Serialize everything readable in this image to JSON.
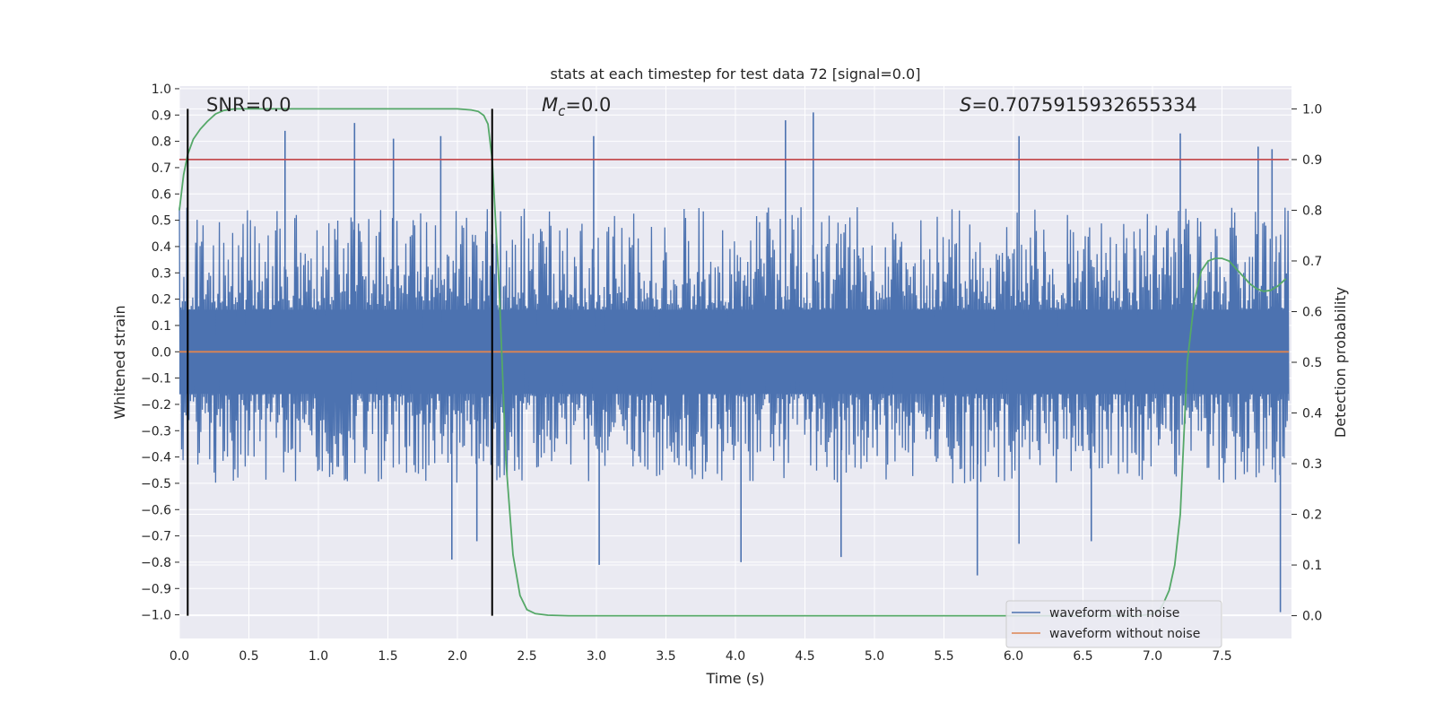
{
  "chart_data": {
    "type": "line",
    "title": "stats at each timestep for test data 72 [signal=0.0]",
    "xlabel": "Time (s)",
    "ylabel": "Whitened strain",
    "y2label": "Detection probability",
    "xlim": [
      0.0,
      8.0
    ],
    "ylim": [
      -1.09,
      1.01
    ],
    "y2lim": [
      -0.045,
      1.045
    ],
    "x_ticks": [
      "0.0",
      "0.5",
      "1.0",
      "1.5",
      "2.0",
      "2.5",
      "3.0",
      "3.5",
      "4.0",
      "4.5",
      "5.0",
      "5.5",
      "6.0",
      "6.5",
      "7.0",
      "7.5"
    ],
    "y_ticks": [
      "1.0",
      "0.9",
      "0.8",
      "0.7",
      "0.6",
      "0.5",
      "0.4",
      "0.3",
      "0.2",
      "0.1",
      "0.0",
      "−0.1",
      "−0.2",
      "−0.3",
      "−0.4",
      "−0.5",
      "−0.6",
      "−0.7",
      "−0.8",
      "−0.9",
      "−1.0"
    ],
    "y2_ticks": [
      "1.0",
      "0.9",
      "0.8",
      "0.7",
      "0.6",
      "0.5",
      "0.4",
      "0.3",
      "0.2",
      "0.1",
      "0.0"
    ],
    "grid": true,
    "legend_position": "lower-right",
    "colors": {
      "noise": "#4c72b0",
      "clean": "#dd8452",
      "prob": "#55a868",
      "threshold": "#c44e52",
      "markers": "#000000",
      "background": "#eaeaf2",
      "grid": "#ffffff"
    },
    "annotations": {
      "snr": "SNR=0.0",
      "mc_prefix": "M",
      "mc_sub": "c",
      "mc_value": "=0.0",
      "s_prefix": "S",
      "s_value": "=0.7075915932655334"
    },
    "series": [
      {
        "name": "waveform with noise",
        "axis": "left",
        "x_range": [
          0.0,
          7.98
        ],
        "typical_envelope": [
          -0.5,
          0.55
        ],
        "peaks": [
          {
            "x": 0.76,
            "y": 0.84
          },
          {
            "x": 1.26,
            "y": 0.87
          },
          {
            "x": 1.54,
            "y": 0.81
          },
          {
            "x": 1.88,
            "y": 0.82
          },
          {
            "x": 2.98,
            "y": 0.82
          },
          {
            "x": 4.36,
            "y": 0.88
          },
          {
            "x": 4.56,
            "y": 0.91
          },
          {
            "x": 6.04,
            "y": 0.82
          },
          {
            "x": 7.2,
            "y": 0.83
          },
          {
            "x": 7.76,
            "y": 0.78
          },
          {
            "x": 7.86,
            "y": 0.77
          }
        ],
        "troughs": [
          {
            "x": 1.96,
            "y": -0.79
          },
          {
            "x": 2.14,
            "y": -0.72
          },
          {
            "x": 3.02,
            "y": -0.81
          },
          {
            "x": 4.04,
            "y": -0.8
          },
          {
            "x": 4.76,
            "y": -0.78
          },
          {
            "x": 5.74,
            "y": -0.85
          },
          {
            "x": 6.04,
            "y": -0.73
          },
          {
            "x": 6.56,
            "y": -0.72
          },
          {
            "x": 7.92,
            "y": -0.99
          }
        ]
      },
      {
        "name": "waveform without noise",
        "axis": "left",
        "x": [
          0.0,
          7.98
        ],
        "y": [
          0.0,
          0.0
        ]
      },
      {
        "axis": "right",
        "x": [
          0.0,
          0.03,
          0.06,
          0.1,
          0.15,
          0.2,
          0.26,
          0.32,
          0.4,
          0.5,
          0.8,
          1.2,
          1.6,
          2.0,
          2.1,
          2.15,
          2.19,
          2.22,
          2.25,
          2.3,
          2.35,
          2.4,
          2.45,
          2.5,
          2.56,
          2.65,
          2.8,
          3.0,
          4.0,
          5.0,
          6.0,
          6.9,
          7.0,
          7.05,
          7.08,
          7.12,
          7.16,
          7.2,
          7.25,
          7.3,
          7.35,
          7.4,
          7.45,
          7.5,
          7.55,
          7.6,
          7.65,
          7.7,
          7.75,
          7.8,
          7.85,
          7.9,
          7.96
        ],
        "y": [
          0.8,
          0.87,
          0.91,
          0.94,
          0.96,
          0.975,
          0.99,
          0.997,
          1.0,
          1.0,
          1.0,
          1.0,
          1.0,
          1.0,
          0.998,
          0.995,
          0.987,
          0.97,
          0.9,
          0.65,
          0.3,
          0.12,
          0.04,
          0.012,
          0.004,
          0.001,
          0.0,
          0.0,
          0.0,
          0.0,
          0.0,
          0.0,
          0.003,
          0.01,
          0.025,
          0.05,
          0.1,
          0.2,
          0.5,
          0.62,
          0.68,
          0.7,
          0.705,
          0.705,
          0.7,
          0.685,
          0.67,
          0.655,
          0.645,
          0.64,
          0.642,
          0.65,
          0.665
        ]
      },
      {
        "axis": "right",
        "x": [
          0.0,
          7.98
        ],
        "y": [
          0.9,
          0.9
        ]
      }
    ],
    "vertical_markers": [
      0.06,
      2.25
    ]
  }
}
